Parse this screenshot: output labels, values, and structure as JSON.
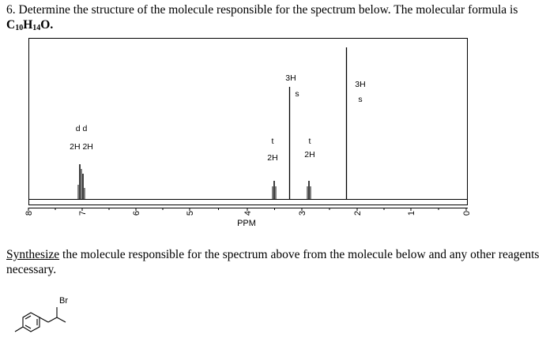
{
  "question": {
    "number": "6.",
    "text_line1": "Determine the structure of the molecule responsible for the spectrum below.  The molecular formula is",
    "formula": {
      "c": "C",
      "c_n": "10",
      "h": "H",
      "h_n": "14",
      "o": "O."
    }
  },
  "spectrum": {
    "axis_label": "PPM",
    "tick_labels": [
      "8",
      "7",
      "6",
      "5",
      "4",
      "3",
      "2",
      "1",
      "0"
    ],
    "peaks": [
      {
        "ppm": 7.1,
        "multiplicity": "d d",
        "integration": "2H 2H"
      },
      {
        "ppm": 3.3,
        "multiplicity": "t",
        "integration": "2H"
      },
      {
        "ppm": 3.1,
        "multiplicity": "s",
        "integration": "3H"
      },
      {
        "ppm": 2.8,
        "multiplicity": "t",
        "integration": "2H"
      },
      {
        "ppm": 2.0,
        "multiplicity": "s",
        "integration": "3H"
      }
    ]
  },
  "instruction": {
    "underlined": "Synthesize",
    "rest": " the molecule responsible for the spectrum above from the molecule below and any other reagents necessary."
  },
  "molecule": {
    "atom_label": "Br"
  }
}
